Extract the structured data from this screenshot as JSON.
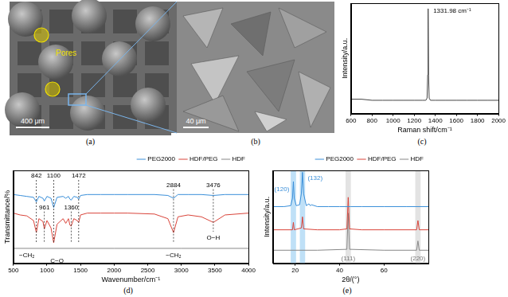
{
  "images": [
    {
      "label": "(a)",
      "annotation": "Pores",
      "scale_bar": "400 μm"
    },
    {
      "label": "(b)",
      "scale_bar": "40 μm"
    }
  ],
  "chart_data": [
    {
      "label": "(c)",
      "type": "line",
      "x_label": "Raman shift/cm⁻¹",
      "y_label": "Intensity/a.u.",
      "xlim": [
        600,
        2000
      ],
      "xticks": [
        600,
        800,
        1000,
        1200,
        1400,
        1600,
        1800,
        2000
      ],
      "ylim": [
        0,
        1
      ],
      "tick_labels": "x",
      "grid": false,
      "series": [
        {
          "color": "#444444",
          "x": [
            600,
            700,
            800,
            900,
            1000,
            1100,
            1200,
            1280,
            1310,
            1322,
            1328,
            1331.98,
            1336,
            1342,
            1354,
            1400,
            1500,
            1600,
            1700,
            1800,
            1900,
            2000
          ],
          "values": [
            0.13,
            0.13,
            0.12,
            0.12,
            0.12,
            0.12,
            0.12,
            0.12,
            0.12,
            0.14,
            0.35,
            0.95,
            0.35,
            0.14,
            0.12,
            0.12,
            0.12,
            0.12,
            0.12,
            0.12,
            0.12,
            0.12
          ]
        }
      ],
      "annotations": [
        {
          "text": "1331.98 cm⁻¹",
          "x": 1560,
          "y": 0.93
        }
      ]
    },
    {
      "label": "(d)",
      "type": "line",
      "x_label": "Wavenumber/cm⁻¹",
      "y_label": "Transmittance/%",
      "xlim": [
        500,
        4000
      ],
      "xticks": [
        500,
        1000,
        1500,
        2000,
        2500,
        3000,
        3500,
        4000
      ],
      "ylim": [
        0,
        100
      ],
      "tick_labels": "x",
      "grid": false,
      "legend": "upper right",
      "series": [
        {
          "name": "PEG2000",
          "color": "#3a8fd9",
          "x": [
            500,
            600,
            700,
            800,
            842,
            880,
            940,
            961,
            1000,
            1060,
            1100,
            1150,
            1240,
            1280,
            1320,
            1342,
            1360,
            1400,
            1450,
            1472,
            1500,
            1600,
            1800,
            2000,
            2200,
            2600,
            2800,
            2884,
            2950,
            3100,
            3300,
            3476,
            3650,
            4000
          ],
          "values": [
            74,
            73,
            72,
            71,
            66,
            72,
            70,
            67,
            72,
            70,
            60,
            71,
            72,
            70,
            72,
            69,
            68,
            72,
            71,
            69,
            73,
            74,
            74,
            74,
            74,
            74,
            73,
            70,
            74,
            74,
            74,
            73,
            74,
            74
          ]
        },
        {
          "name": "HDF/PEG",
          "color": "#d9443a",
          "x": [
            500,
            600,
            700,
            800,
            842,
            880,
            940,
            961,
            1000,
            1060,
            1100,
            1150,
            1240,
            1280,
            1320,
            1342,
            1360,
            1400,
            1450,
            1472,
            1500,
            1600,
            1800,
            2000,
            2200,
            2600,
            2800,
            2884,
            2950,
            3100,
            3300,
            3476,
            3650,
            4000
          ],
          "values": [
            54,
            52,
            51,
            46,
            33,
            48,
            45,
            37,
            46,
            38,
            22,
            42,
            48,
            43,
            48,
            41,
            40,
            48,
            46,
            44,
            52,
            54,
            54,
            54,
            54,
            53,
            48,
            33,
            50,
            52,
            50,
            44,
            52,
            54
          ]
        },
        {
          "name": "HDF",
          "color": "#888888",
          "x": [
            500,
            1000,
            2000,
            3000,
            4000
          ],
          "values": [
            16,
            16,
            16,
            16,
            16
          ]
        }
      ],
      "peaks": [
        {
          "x": 842,
          "y": 94,
          "y_end": 22
        },
        {
          "x": 1100,
          "y": 94,
          "y_end": 22
        },
        {
          "x": 1472,
          "y": 94,
          "y_end": 22
        },
        {
          "x": 961,
          "y": 60,
          "y_end": 22
        },
        {
          "x": 1360,
          "y": 60,
          "y_end": 22
        },
        {
          "x": 2884,
          "y": 84,
          "y_end": 22
        },
        {
          "x": 3476,
          "y": 84,
          "y_end": 34
        }
      ],
      "annotations": [
        {
          "text": "−CH₂",
          "x": 700,
          "y": 8
        },
        {
          "text": "C−O",
          "x": 1150,
          "y": 2
        },
        {
          "text": "−CH₂",
          "x": 2884,
          "y": 8
        },
        {
          "text": "O−H",
          "x": 3476,
          "y": 27
        }
      ]
    },
    {
      "label": "(e)",
      "type": "line",
      "x_label": "2θ/(°)",
      "y_label": "Intensity/a.u.",
      "xlim": [
        10,
        80
      ],
      "xticks": [
        20,
        40,
        60
      ],
      "ylim": [
        0,
        100
      ],
      "tick_labels": "x",
      "grid": false,
      "legend": "upper right",
      "series": [
        {
          "name": "PEG2000",
          "color": "#3a8fd9",
          "x": [
            10,
            15,
            18,
            18.8,
            19.2,
            19.6,
            20.5,
            22,
            22.8,
            23.3,
            23.8,
            25,
            26.2,
            26.8,
            27.4,
            30,
            35,
            40,
            45,
            50,
            60,
            70,
            80
          ],
          "values": [
            61,
            61,
            62,
            70,
            88,
            70,
            62,
            63,
            75,
            98,
            75,
            62,
            64,
            62,
            63,
            61,
            61,
            61,
            61,
            61,
            61,
            61,
            61
          ]
        },
        {
          "name": "HDF/PEG",
          "color": "#d9443a",
          "x": [
            10,
            18.8,
            19.2,
            19.6,
            22.8,
            23.3,
            23.8,
            30,
            40,
            43.3,
            43.9,
            44.5,
            50,
            60,
            74.7,
            75.3,
            75.9,
            80
          ],
          "values": [
            36,
            36,
            44,
            36,
            38,
            50,
            37,
            36,
            36,
            37,
            71,
            37,
            36,
            36,
            36,
            46,
            36,
            36
          ]
        },
        {
          "name": "HDF",
          "color": "#888888",
          "x": [
            10,
            30,
            43.3,
            43.9,
            44.5,
            60,
            74.7,
            75.3,
            75.9,
            80
          ],
          "values": [
            14,
            14,
            15,
            54,
            15,
            14,
            14,
            24,
            14,
            14
          ]
        }
      ],
      "bands": [
        {
          "x": 19.2,
          "color": "#bfe0f7"
        },
        {
          "x": 23.3,
          "color": "#bfe0f7"
        },
        {
          "x": 43.9,
          "color": "#e3e3e3"
        },
        {
          "x": 75.3,
          "color": "#e3e3e3"
        }
      ],
      "annotations": [
        {
          "text": "(120)",
          "x": 14,
          "y": 80,
          "color": "#3a8fd9"
        },
        {
          "text": "(132)",
          "x": 29,
          "y": 92,
          "color": "#3a8fd9"
        },
        {
          "text": "(111)",
          "x": 43.9,
          "y": 5,
          "color": "#777777"
        },
        {
          "text": "(220)",
          "x": 75.3,
          "y": 5,
          "color": "#777777"
        }
      ]
    }
  ]
}
